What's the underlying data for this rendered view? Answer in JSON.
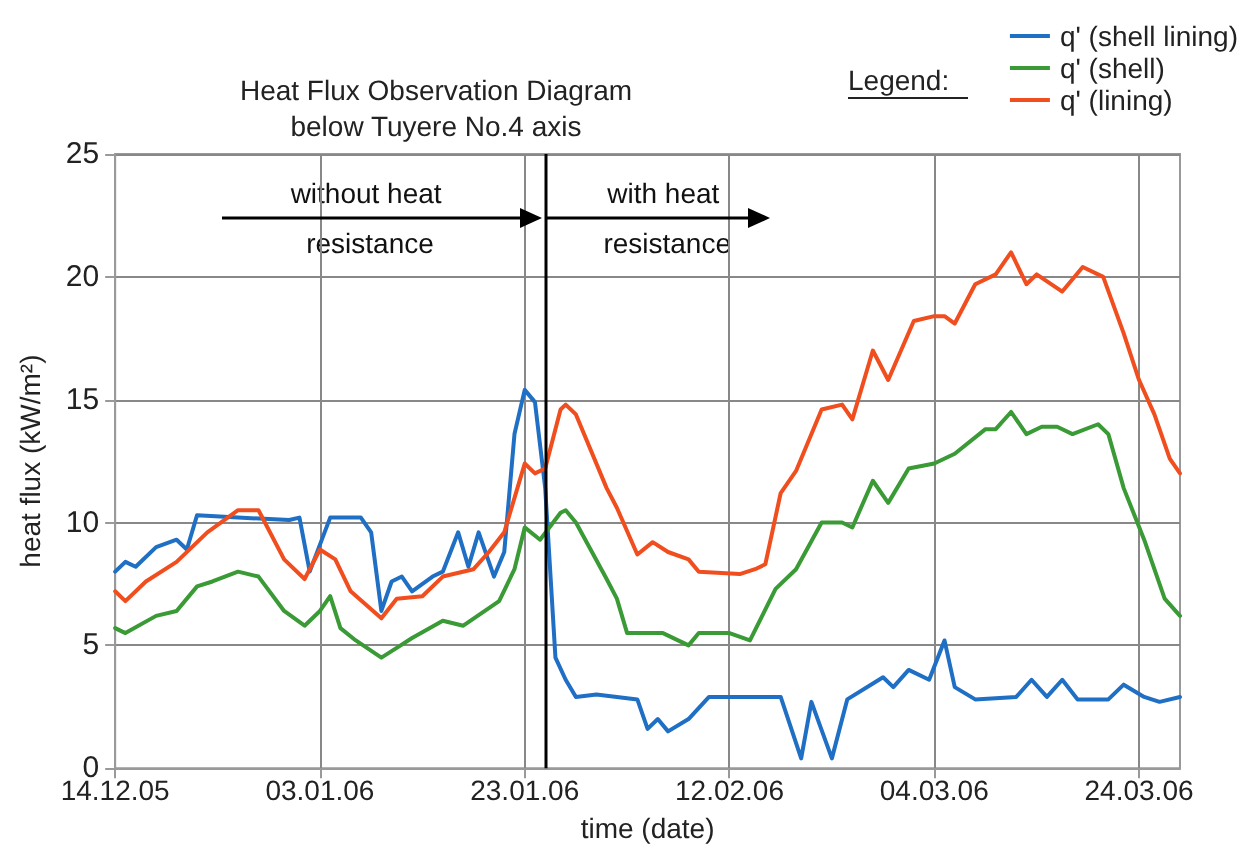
{
  "chart_data": {
    "type": "line",
    "title": "Heat Flux Observation Diagram\nbelow Tuyere No.4 axis",
    "xlabel": "time (date)",
    "ylabel": "heat flux (kW/m²)",
    "legend_title": "Legend:",
    "xlim": [
      "2005-12-14",
      "2006-03-28"
    ],
    "ylim": [
      0,
      25
    ],
    "xticks": [
      {
        "value": "2005-12-14",
        "label": "14.12.05"
      },
      {
        "value": "2006-01-03",
        "label": "03.01.06"
      },
      {
        "value": "2006-01-23",
        "label": "23.01.06"
      },
      {
        "value": "2006-02-12",
        "label": "12.02.06"
      },
      {
        "value": "2006-03-04",
        "label": "04.03.06"
      },
      {
        "value": "2006-03-24",
        "label": "24.03.06"
      }
    ],
    "yticks": [
      0,
      5,
      10,
      15,
      20,
      25
    ],
    "grid": true,
    "legend": "top right",
    "marker": "none",
    "line_style": "solid",
    "annotations": [
      "without heat resistance",
      {
        "text": "with heat resistance",
        "x": "2006-01-25",
        "y": 22.4
      }
    ],
    "ref_lines": [
      {
        "axis": "x",
        "value": "2006-01-25",
        "color": "#000000"
      }
    ],
    "series": [
      {
        "name": "q' (shell lining)",
        "color": "#1f6fc5",
        "x": [
          "2005-12-14",
          "2005-12-15",
          "2005-12-16",
          "2005-12-18",
          "2005-12-20",
          "2005-12-21",
          "2005-12-22",
          "2005-12-26",
          "2005-12-31",
          "2006-01-01",
          "2006-01-02",
          "2006-01-04",
          "2006-01-07",
          "2006-01-08",
          "2006-01-09",
          "2006-01-10",
          "2006-01-11",
          "2006-01-12",
          "2006-01-14",
          "2006-01-15",
          "2006-01-16T12:00",
          "2006-01-17T12:00",
          "2006-01-18T12:00",
          "2006-01-20",
          "2006-01-21",
          "2006-01-22",
          "2006-01-23",
          "2006-01-24",
          "2006-01-25",
          "2006-01-26",
          "2006-01-27",
          "2006-01-28",
          "2006-01-30",
          "2006-02-03",
          "2006-02-04",
          "2006-02-05",
          "2006-02-06",
          "2006-02-08",
          "2006-02-10",
          "2006-02-14",
          "2006-02-17",
          "2006-02-19",
          "2006-02-20",
          "2006-02-22",
          "2006-02-23T12:00",
          "2006-02-27",
          "2006-02-28",
          "2006-03-01T12:00",
          "2006-03-03T12:00",
          "2006-03-05",
          "2006-03-06",
          "2006-03-08",
          "2006-03-12",
          "2006-03-13T12:00",
          "2006-03-15",
          "2006-03-16T12:00",
          "2006-03-18",
          "2006-03-21",
          "2006-03-22T12:00",
          "2006-03-24T12:00",
          "2006-03-26",
          "2006-03-28"
        ],
        "values": [
          8.0,
          8.4,
          8.2,
          9.0,
          9.3,
          8.9,
          10.3,
          10.2,
          10.1,
          10.2,
          8.0,
          10.2,
          10.2,
          9.6,
          6.4,
          7.6,
          7.8,
          7.2,
          7.8,
          8.0,
          9.6,
          8.2,
          9.6,
          7.8,
          8.8,
          13.6,
          15.4,
          14.9,
          11.4,
          4.5,
          3.6,
          2.9,
          3.0,
          2.8,
          1.6,
          2.0,
          1.5,
          2.0,
          2.9,
          2.9,
          2.9,
          0.4,
          2.7,
          0.4,
          2.8,
          3.7,
          3.3,
          4.0,
          3.6,
          5.2,
          3.3,
          2.8,
          2.9,
          3.6,
          2.9,
          3.6,
          2.8,
          2.8,
          3.4,
          2.9,
          2.7,
          2.9
        ]
      },
      {
        "name": "q' (shell)",
        "color": "#3a9a35",
        "x": [
          "2005-12-14",
          "2005-12-15",
          "2005-12-18",
          "2005-12-20",
          "2005-12-22",
          "2005-12-23T12:00",
          "2005-12-26",
          "2005-12-28",
          "2005-12-30T12:00",
          "2006-01-01T12:00",
          "2006-01-03",
          "2006-01-04",
          "2006-01-05",
          "2006-01-06T12:00",
          "2006-01-09",
          "2006-01-10T12:00",
          "2006-01-12",
          "2006-01-15",
          "2006-01-17",
          "2006-01-20T12:00",
          "2006-01-22",
          "2006-01-23",
          "2006-01-24T12:00",
          "2006-01-26T12:00",
          "2006-01-27",
          "2006-01-28",
          "2006-01-31",
          "2006-02-01",
          "2006-02-02",
          "2006-02-05T12:00",
          "2006-02-08",
          "2006-02-09",
          "2006-02-12",
          "2006-02-14",
          "2006-02-16T12:00",
          "2006-02-18T12:00",
          "2006-02-21",
          "2006-02-23",
          "2006-02-24",
          "2006-02-26",
          "2006-02-27T12:00",
          "2006-03-01T12:00",
          "2006-03-04",
          "2006-03-06",
          "2006-03-09",
          "2006-03-10",
          "2006-03-11T12:00",
          "2006-03-13",
          "2006-03-14T12:00",
          "2006-03-16",
          "2006-03-17T12:00",
          "2006-03-20",
          "2006-03-21",
          "2006-03-22T12:00",
          "2006-03-24T12:00",
          "2006-03-26T12:00",
          "2006-03-28"
        ],
        "values": [
          5.7,
          5.5,
          6.2,
          6.4,
          7.4,
          7.6,
          8.0,
          7.8,
          6.4,
          5.8,
          6.4,
          7.0,
          5.7,
          5.2,
          4.5,
          4.9,
          5.3,
          6.0,
          5.8,
          6.8,
          8.1,
          9.8,
          9.3,
          10.4,
          10.5,
          10.0,
          7.7,
          6.9,
          5.5,
          5.5,
          5.0,
          5.5,
          5.5,
          5.2,
          7.3,
          8.1,
          10.0,
          10.0,
          9.8,
          11.7,
          10.8,
          12.2,
          12.4,
          12.8,
          13.8,
          13.8,
          14.5,
          13.6,
          13.9,
          13.9,
          13.6,
          14.0,
          13.6,
          11.4,
          9.3,
          6.9,
          6.2
        ]
      },
      {
        "name": "q' (lining)",
        "color": "#f04e1f",
        "x": [
          "2005-12-14",
          "2005-12-15",
          "2005-12-17",
          "2005-12-20",
          "2005-12-23",
          "2005-12-26",
          "2005-12-28",
          "2005-12-30T12:00",
          "2006-01-01T12:00",
          "2006-01-03",
          "2006-01-04T12:00",
          "2006-01-06",
          "2006-01-09",
          "2006-01-10T12:00",
          "2006-01-13",
          "2006-01-15",
          "2006-01-18",
          "2006-01-19T12:00",
          "2006-01-21",
          "2006-01-23",
          "2006-01-24",
          "2006-01-25",
          "2006-01-26T12:00",
          "2006-01-27",
          "2006-01-28",
          "2006-01-31",
          "2006-02-01",
          "2006-02-03",
          "2006-02-04T12:00",
          "2006-02-06",
          "2006-02-08",
          "2006-02-09",
          "2006-02-13",
          "2006-02-14T12:00",
          "2006-02-15T12:00",
          "2006-02-17",
          "2006-02-18T12:00",
          "2006-02-21",
          "2006-02-23",
          "2006-02-24",
          "2006-02-26",
          "2006-02-27T12:00",
          "2006-03-02",
          "2006-03-04",
          "2006-03-05",
          "2006-03-06",
          "2006-03-08",
          "2006-03-10",
          "2006-03-11T12:00",
          "2006-03-13",
          "2006-03-14",
          "2006-03-16T12:00",
          "2006-03-18T12:00",
          "2006-03-20T12:00",
          "2006-03-22T12:00",
          "2006-03-24",
          "2006-03-25T12:00",
          "2006-03-27",
          "2006-03-28"
        ],
        "values": [
          7.2,
          6.8,
          7.6,
          8.4,
          9.6,
          10.5,
          10.5,
          8.5,
          7.7,
          8.9,
          8.5,
          7.2,
          6.1,
          6.9,
          7.0,
          7.8,
          8.1,
          8.8,
          9.6,
          12.4,
          12.0,
          12.2,
          14.6,
          14.8,
          14.4,
          11.4,
          10.6,
          8.7,
          9.2,
          8.8,
          8.5,
          8.0,
          7.9,
          8.1,
          8.3,
          11.2,
          12.1,
          14.6,
          14.8,
          14.2,
          17.0,
          15.8,
          18.2,
          18.4,
          18.4,
          18.1,
          19.7,
          20.1,
          21.0,
          19.7,
          20.1,
          19.4,
          20.4,
          20.0,
          17.7,
          15.8,
          14.4,
          12.6,
          12.0
        ]
      }
    ]
  }
}
